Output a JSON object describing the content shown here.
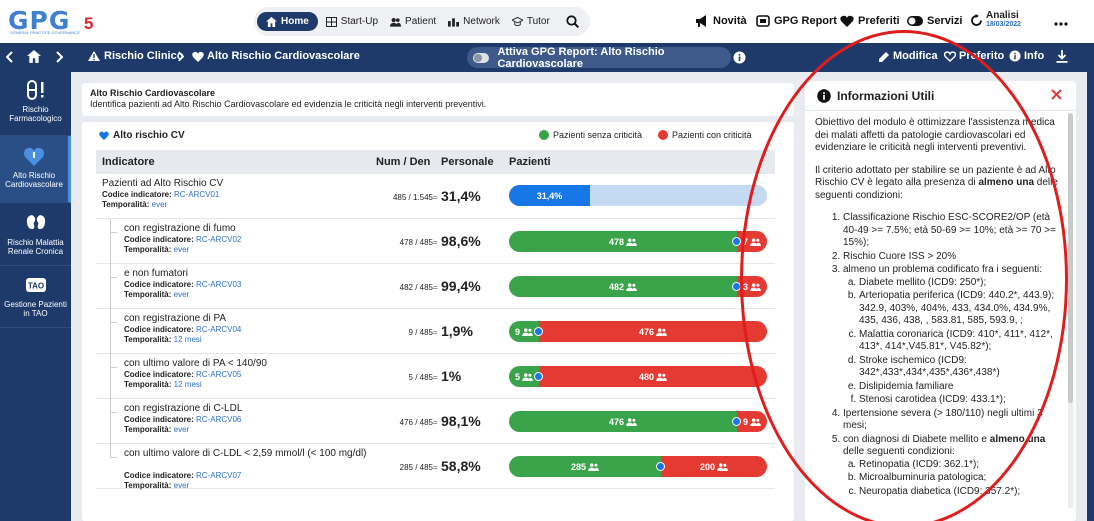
{
  "logo": {
    "text": "GPG",
    "five": "5",
    "sub": "GENERAL PRACTICE GOVERNANCE"
  },
  "topnav": {
    "items": [
      {
        "label": "Home",
        "icon": "home-icon",
        "active": true
      },
      {
        "label": "Start-Up",
        "icon": "grid-icon"
      },
      {
        "label": "Patient",
        "icon": "people-icon"
      },
      {
        "label": "Network",
        "icon": "network-icon"
      },
      {
        "label": "Tutor",
        "icon": "tutor-icon"
      }
    ],
    "search_icon": "search-icon"
  },
  "topright": {
    "novita": "Novità",
    "gpg_report": "GPG Report",
    "preferiti": "Preferiti",
    "servizi": "Servizi",
    "analisi": "Analisi",
    "analisi_date": "18/03/2022"
  },
  "bluebar": {
    "crumb1": "Rischio Clinico",
    "crumb2": "Alto Rischio Cardiovascolare",
    "toggle_label": "Attiva GPG Report: Alto Rischio Cardiovascolare",
    "modifica": "Modifica",
    "preferito": "Preferito",
    "info": "Info"
  },
  "sidebar": {
    "items": [
      {
        "label": "Rischio Farmacologico",
        "icon": "pill-alert-icon"
      },
      {
        "label": "Alto Rischio Cardiovascolare",
        "icon": "heart-shield-icon",
        "active": true
      },
      {
        "label": "Rischio Malattia Renale Cronica",
        "icon": "kidney-icon"
      },
      {
        "label": "Gestione Pazienti in TAO",
        "icon": "tao-icon"
      }
    ]
  },
  "description": {
    "title": "Alto Rischio Cardiovascolare",
    "text": "Identifica pazienti ad Alto Rischio Cardiovascolare ed evidenzia le criticità negli interventi preventivi."
  },
  "table": {
    "section_title": "Alto rischio CV",
    "legend_ok": "Pazienti senza criticità",
    "legend_bad": "Pazienti con criticità",
    "colors": {
      "green": "#3aa44a",
      "red": "#e53a31",
      "blue": "#1877e6",
      "lightblue": "#c4d9f2"
    },
    "headers": {
      "indicatore": "Indicatore",
      "numden": "Num / Den",
      "personale": "Personale",
      "pazienti": "Pazienti"
    },
    "code_label": "Codice indicatore:",
    "temp_label": "Temporalità:",
    "rows": [
      {
        "name": "Pazienti ad Alto Rischio CV",
        "code": "RC-ARCV01",
        "temp": "ever",
        "numden": "485 / 1.545",
        "pct": "31,4%",
        "type": "overall",
        "fraction": 0.314,
        "bar_label": "31,4%"
      },
      {
        "name": "con registrazione di fumo",
        "code": "RC-ARCV02",
        "temp": "ever",
        "numden": "478 / 485",
        "pct": "98,6%",
        "ok": "478",
        "bad": "7",
        "fraction_ok": 0.986
      },
      {
        "name": "e non fumatori",
        "code": "RC-ARCV03",
        "temp": "ever",
        "numden": "482 / 485",
        "pct": "99,4%",
        "ok": "482",
        "bad": "3",
        "fraction_ok": 0.994
      },
      {
        "name": "con registrazione di PA",
        "code": "RC-ARCV04",
        "temp": "12 mesi",
        "numden": "9 / 485",
        "pct": "1,9%",
        "ok": "9",
        "bad": "476",
        "fraction_ok": 0.019
      },
      {
        "name": "con ultimo valore di PA < 140/90",
        "code": "RC-ARCV05",
        "temp": "12 mesi",
        "numden": "5 / 485",
        "pct": "1%",
        "ok": "5",
        "bad": "480",
        "fraction_ok": 0.01
      },
      {
        "name": "con registrazione di C-LDL",
        "code": "RC-ARCV06",
        "temp": "ever",
        "numden": "476 / 485",
        "pct": "98,1%",
        "ok": "476",
        "bad": "9",
        "fraction_ok": 0.981
      },
      {
        "name": "con ultimo valore di C-LDL < 2,59 mmol/l (< 100 mg/dl)",
        "code": "RC-ARCV07",
        "temp": "ever",
        "numden": "285 / 485",
        "pct": "58,8%",
        "ok": "285",
        "bad": "200",
        "fraction_ok": 0.588
      }
    ]
  },
  "info_panel": {
    "title": "Informazioni Utili",
    "p1": "Obiettivo del modulo è ottimizzare l'assistenza medica dei malati affetti da patologie cardiovascolari ed evidenziare le criticità negli interventi preventivi.",
    "p2_pre": "Il criterio adottato per stabilire se un paziente è ad Alto Rischio CV è legato alla presenza di ",
    "p2_bold": "almeno una",
    "p2_post": " delle seguenti condizioni:",
    "li1": "Classificazione Rischio ESC-SCORE2/OP (età 40-49 >= 7.5%; età 50-69 >= 10%; età >= 70 >= 15%);",
    "li2": "Rischio Cuore ISS > 20%",
    "li3": "almeno un problema codificato fra i seguenti:",
    "li3_a": "Diabete mellito (ICD9: 250*);",
    "li3_b": "Arteriopatia periferica (ICD9: 440.2*, 443.9); 342.9, 403%, 404%, 433, 434.0%, 434.9%, 435, 436, 438, , 583.81, 585, 593.9, ;",
    "li3_c": "Malattia coronarica (ICD9: 410*, 411*, 412*, 413*, 414*,V45.81*, V45.82*);",
    "li3_d": "Stroke ischemico (ICD9: 342*,433*,434*,435*,436*,438*)",
    "li3_e": "Dislipidemia familiare",
    "li3_f": "Stenosi carotidea (ICD9: 433.1*);",
    "li4": "Ipertensione severa (> 180/110) negli ultimi 3 mesi;",
    "li5_pre": "con diagnosi di Diabete mellito e ",
    "li5_bold": "almeno una",
    "li5_post": " delle seguenti condizioni:",
    "li5_a": "Retinopatia (ICD9: 362.1*);",
    "li5_b": "Microalbuminuria patologica;",
    "li5_c": "Neuropatia diabetica (ICD9: 357.2*);"
  }
}
